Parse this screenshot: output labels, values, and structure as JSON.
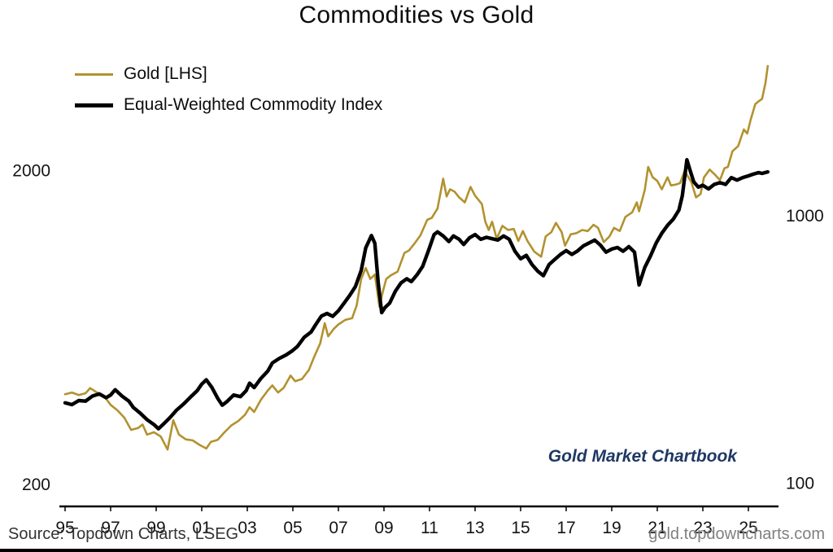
{
  "title": "Commodities vs Gold",
  "legend": {
    "items": [
      {
        "label": "Gold [LHS]"
      },
      {
        "label": "Equal-Weighted Commodity Index"
      }
    ]
  },
  "annotation": {
    "text": "Gold Market Chartbook",
    "color": "#1F3864"
  },
  "footer": {
    "source": "Source: Topdown Charts, LSEG",
    "site": "gold.topdowncharts.com"
  },
  "chart_data": {
    "type": "line",
    "title": "Commodities vs Gold",
    "x_range": [
      1995,
      2026
    ],
    "grid": false,
    "legend_position": "top-left",
    "x_ticks": [
      {
        "year": 1995,
        "label": "95"
      },
      {
        "year": 1997,
        "label": "97"
      },
      {
        "year": 1999,
        "label": "99"
      },
      {
        "year": 2001,
        "label": "01"
      },
      {
        "year": 2003,
        "label": "03"
      },
      {
        "year": 2005,
        "label": "05"
      },
      {
        "year": 2007,
        "label": "07"
      },
      {
        "year": 2009,
        "label": "09"
      },
      {
        "year": 2011,
        "label": "11"
      },
      {
        "year": 2013,
        "label": "13"
      },
      {
        "year": 2015,
        "label": "15"
      },
      {
        "year": 2017,
        "label": "17"
      },
      {
        "year": 2019,
        "label": "19"
      },
      {
        "year": 2021,
        "label": "21"
      },
      {
        "year": 2023,
        "label": "23"
      },
      {
        "year": 2025,
        "label": "25"
      }
    ],
    "axes": {
      "left": {
        "scale": "log",
        "range": [
          170,
          5500
        ],
        "ticks": [
          {
            "value": 2000,
            "label": "2000"
          },
          {
            "value": 200,
            "label": "200"
          }
        ]
      },
      "right": {
        "scale": "log",
        "range": [
          82,
          4850
        ],
        "ticks": [
          {
            "value": 1000,
            "label": "1000"
          },
          {
            "value": 100,
            "label": "100"
          }
        ]
      }
    },
    "series": [
      {
        "id": "gold-series",
        "name": "Gold [LHS]",
        "axis": "left",
        "color": "#B2922F",
        "width": 2.6,
        "points": [
          [
            1995.0,
            387
          ],
          [
            1995.3,
            392
          ],
          [
            1995.6,
            385
          ],
          [
            1995.9,
            390
          ],
          [
            1996.1,
            405
          ],
          [
            1996.4,
            392
          ],
          [
            1996.7,
            383
          ],
          [
            1997.0,
            358
          ],
          [
            1997.3,
            344
          ],
          [
            1997.6,
            326
          ],
          [
            1997.9,
            298
          ],
          [
            1998.2,
            302
          ],
          [
            1998.4,
            310
          ],
          [
            1998.6,
            288
          ],
          [
            1998.9,
            293
          ],
          [
            1999.2,
            284
          ],
          [
            1999.5,
            258
          ],
          [
            1999.75,
            320
          ],
          [
            2000.0,
            288
          ],
          [
            2000.3,
            278
          ],
          [
            2000.6,
            276
          ],
          [
            2000.9,
            267
          ],
          [
            2001.2,
            260
          ],
          [
            2001.4,
            273
          ],
          [
            2001.7,
            277
          ],
          [
            2002.0,
            293
          ],
          [
            2002.3,
            308
          ],
          [
            2002.6,
            318
          ],
          [
            2002.9,
            333
          ],
          [
            2003.1,
            352
          ],
          [
            2003.3,
            340
          ],
          [
            2003.6,
            372
          ],
          [
            2003.9,
            398
          ],
          [
            2004.1,
            413
          ],
          [
            2004.35,
            392
          ],
          [
            2004.6,
            406
          ],
          [
            2004.9,
            444
          ],
          [
            2005.1,
            426
          ],
          [
            2005.4,
            433
          ],
          [
            2005.7,
            462
          ],
          [
            2005.95,
            512
          ],
          [
            2006.2,
            562
          ],
          [
            2006.4,
            652
          ],
          [
            2006.55,
            592
          ],
          [
            2006.8,
            626
          ],
          [
            2007.0,
            646
          ],
          [
            2007.3,
            668
          ],
          [
            2007.6,
            676
          ],
          [
            2007.8,
            742
          ],
          [
            2008.0,
            902
          ],
          [
            2008.2,
            978
          ],
          [
            2008.4,
            902
          ],
          [
            2008.6,
            932
          ],
          [
            2008.8,
            736
          ],
          [
            2008.95,
            822
          ],
          [
            2009.1,
            902
          ],
          [
            2009.3,
            926
          ],
          [
            2009.6,
            952
          ],
          [
            2009.9,
            1092
          ],
          [
            2010.1,
            1112
          ],
          [
            2010.35,
            1172
          ],
          [
            2010.6,
            1242
          ],
          [
            2010.9,
            1392
          ],
          [
            2011.1,
            1412
          ],
          [
            2011.35,
            1512
          ],
          [
            2011.6,
            1882
          ],
          [
            2011.75,
            1652
          ],
          [
            2011.9,
            1742
          ],
          [
            2012.1,
            1712
          ],
          [
            2012.3,
            1642
          ],
          [
            2012.55,
            1582
          ],
          [
            2012.8,
            1772
          ],
          [
            2013.0,
            1662
          ],
          [
            2013.3,
            1562
          ],
          [
            2013.45,
            1372
          ],
          [
            2013.6,
            1292
          ],
          [
            2013.75,
            1372
          ],
          [
            2013.95,
            1212
          ],
          [
            2014.2,
            1332
          ],
          [
            2014.45,
            1292
          ],
          [
            2014.7,
            1302
          ],
          [
            2014.9,
            1192
          ],
          [
            2015.1,
            1282
          ],
          [
            2015.3,
            1192
          ],
          [
            2015.6,
            1102
          ],
          [
            2015.9,
            1062
          ],
          [
            2016.1,
            1232
          ],
          [
            2016.35,
            1272
          ],
          [
            2016.55,
            1362
          ],
          [
            2016.8,
            1272
          ],
          [
            2016.95,
            1152
          ],
          [
            2017.2,
            1252
          ],
          [
            2017.45,
            1262
          ],
          [
            2017.7,
            1292
          ],
          [
            2017.95,
            1282
          ],
          [
            2018.2,
            1342
          ],
          [
            2018.4,
            1312
          ],
          [
            2018.65,
            1182
          ],
          [
            2018.9,
            1232
          ],
          [
            2019.1,
            1312
          ],
          [
            2019.35,
            1282
          ],
          [
            2019.6,
            1422
          ],
          [
            2019.9,
            1472
          ],
          [
            2020.1,
            1582
          ],
          [
            2020.2,
            1482
          ],
          [
            2020.45,
            1732
          ],
          [
            2020.6,
            2052
          ],
          [
            2020.8,
            1902
          ],
          [
            2021.0,
            1852
          ],
          [
            2021.2,
            1742
          ],
          [
            2021.45,
            1902
          ],
          [
            2021.6,
            1792
          ],
          [
            2021.8,
            1802
          ],
          [
            2022.0,
            1822
          ],
          [
            2022.2,
            1992
          ],
          [
            2022.5,
            1832
          ],
          [
            2022.7,
            1642
          ],
          [
            2022.9,
            1682
          ],
          [
            2023.05,
            1902
          ],
          [
            2023.3,
            2012
          ],
          [
            2023.55,
            1932
          ],
          [
            2023.75,
            1862
          ],
          [
            2023.95,
            2032
          ],
          [
            2024.1,
            2052
          ],
          [
            2024.3,
            2302
          ],
          [
            2024.55,
            2392
          ],
          [
            2024.8,
            2702
          ],
          [
            2024.95,
            2622
          ],
          [
            2025.1,
            2902
          ],
          [
            2025.3,
            3252
          ],
          [
            2025.45,
            3322
          ],
          [
            2025.6,
            3382
          ],
          [
            2025.75,
            3802
          ],
          [
            2025.85,
            4302
          ]
        ]
      },
      {
        "id": "commodity-series",
        "name": "Equal-Weighted Commodity Index",
        "axis": "right",
        "color": "#000000",
        "width": 4.4,
        "points": [
          [
            1995.0,
            200
          ],
          [
            1995.3,
            197
          ],
          [
            1995.6,
            204
          ],
          [
            1995.9,
            203
          ],
          [
            1996.2,
            212
          ],
          [
            1996.5,
            216
          ],
          [
            1996.8,
            209
          ],
          [
            1997.0,
            214
          ],
          [
            1997.2,
            224
          ],
          [
            1997.5,
            212
          ],
          [
            1997.8,
            203
          ],
          [
            1998.0,
            192
          ],
          [
            1998.3,
            183
          ],
          [
            1998.6,
            173
          ],
          [
            1998.9,
            166
          ],
          [
            1999.1,
            160
          ],
          [
            1999.3,
            166
          ],
          [
            1999.6,
            176
          ],
          [
            1999.9,
            188
          ],
          [
            2000.2,
            198
          ],
          [
            2000.5,
            210
          ],
          [
            2000.8,
            222
          ],
          [
            2001.0,
            235
          ],
          [
            2001.2,
            244
          ],
          [
            2001.45,
            228
          ],
          [
            2001.7,
            208
          ],
          [
            2001.9,
            196
          ],
          [
            2002.1,
            202
          ],
          [
            2002.4,
            214
          ],
          [
            2002.7,
            211
          ],
          [
            2002.95,
            222
          ],
          [
            2003.1,
            237
          ],
          [
            2003.3,
            228
          ],
          [
            2003.6,
            247
          ],
          [
            2003.9,
            263
          ],
          [
            2004.1,
            282
          ],
          [
            2004.4,
            293
          ],
          [
            2004.7,
            302
          ],
          [
            2004.95,
            312
          ],
          [
            2005.2,
            325
          ],
          [
            2005.5,
            352
          ],
          [
            2005.8,
            368
          ],
          [
            2006.0,
            392
          ],
          [
            2006.25,
            422
          ],
          [
            2006.5,
            432
          ],
          [
            2006.75,
            421
          ],
          [
            2007.0,
            442
          ],
          [
            2007.25,
            472
          ],
          [
            2007.5,
            505
          ],
          [
            2007.75,
            545
          ],
          [
            2008.0,
            625
          ],
          [
            2008.2,
            760
          ],
          [
            2008.45,
            845
          ],
          [
            2008.6,
            790
          ],
          [
            2008.75,
            560
          ],
          [
            2008.9,
            435
          ],
          [
            2009.05,
            455
          ],
          [
            2009.25,
            472
          ],
          [
            2009.5,
            523
          ],
          [
            2009.75,
            562
          ],
          [
            2010.0,
            582
          ],
          [
            2010.2,
            568
          ],
          [
            2010.45,
            602
          ],
          [
            2010.7,
            648
          ],
          [
            2010.95,
            740
          ],
          [
            2011.2,
            852
          ],
          [
            2011.35,
            872
          ],
          [
            2011.6,
            842
          ],
          [
            2011.85,
            802
          ],
          [
            2012.05,
            842
          ],
          [
            2012.3,
            818
          ],
          [
            2012.5,
            782
          ],
          [
            2012.75,
            828
          ],
          [
            2013.0,
            852
          ],
          [
            2013.25,
            818
          ],
          [
            2013.5,
            832
          ],
          [
            2013.75,
            822
          ],
          [
            2014.0,
            812
          ],
          [
            2014.25,
            842
          ],
          [
            2014.5,
            818
          ],
          [
            2014.75,
            738
          ],
          [
            2015.0,
            692
          ],
          [
            2015.25,
            712
          ],
          [
            2015.5,
            658
          ],
          [
            2015.75,
            622
          ],
          [
            2016.0,
            598
          ],
          [
            2016.25,
            658
          ],
          [
            2016.5,
            688
          ],
          [
            2016.75,
            718
          ],
          [
            2017.0,
            742
          ],
          [
            2017.25,
            718
          ],
          [
            2017.5,
            740
          ],
          [
            2017.75,
            772
          ],
          [
            2018.0,
            792
          ],
          [
            2018.25,
            812
          ],
          [
            2018.5,
            778
          ],
          [
            2018.75,
            732
          ],
          [
            2019.0,
            752
          ],
          [
            2019.25,
            762
          ],
          [
            2019.5,
            738
          ],
          [
            2019.75,
            768
          ],
          [
            2020.0,
            732
          ],
          [
            2020.2,
            552
          ],
          [
            2020.45,
            642
          ],
          [
            2020.7,
            708
          ],
          [
            2020.95,
            792
          ],
          [
            2021.2,
            862
          ],
          [
            2021.45,
            922
          ],
          [
            2021.7,
            972
          ],
          [
            2021.95,
            1052
          ],
          [
            2022.1,
            1192
          ],
          [
            2022.3,
            1622
          ],
          [
            2022.45,
            1472
          ],
          [
            2022.6,
            1342
          ],
          [
            2022.8,
            1282
          ],
          [
            2023.0,
            1302
          ],
          [
            2023.25,
            1262
          ],
          [
            2023.5,
            1312
          ],
          [
            2023.75,
            1332
          ],
          [
            2024.0,
            1312
          ],
          [
            2024.25,
            1392
          ],
          [
            2024.5,
            1362
          ],
          [
            2024.75,
            1392
          ],
          [
            2025.0,
            1412
          ],
          [
            2025.2,
            1432
          ],
          [
            2025.45,
            1452
          ],
          [
            2025.6,
            1442
          ],
          [
            2025.85,
            1462
          ]
        ]
      }
    ]
  }
}
